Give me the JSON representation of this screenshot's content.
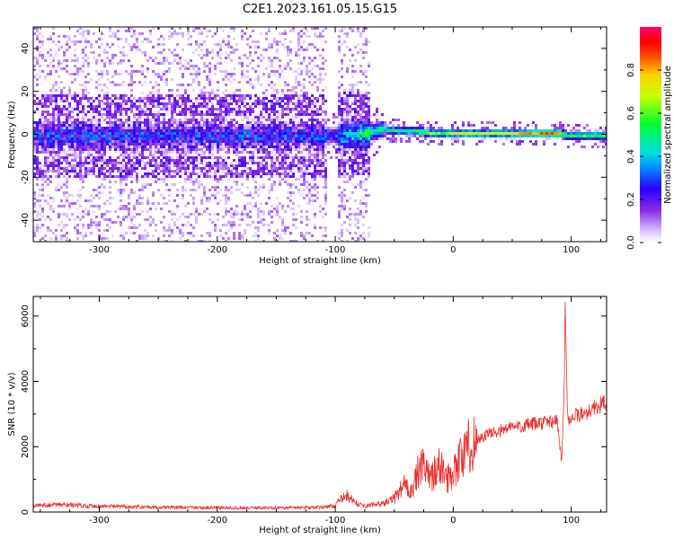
{
  "title": "C2E1.2023.161.05.15.G15",
  "chart_data": [
    {
      "type": "heatmap",
      "xlabel": "Height of straight line (km)",
      "ylabel": "Frequency (Hz)",
      "xlim": [
        -356,
        130
      ],
      "ylim": [
        -50,
        50
      ],
      "xticks": [
        -300,
        -200,
        -100,
        0,
        100
      ],
      "yticks": [
        -40,
        -20,
        0,
        20,
        40
      ],
      "colorbar": {
        "label": "Normalized spectral amplitude",
        "range": [
          0,
          1
        ],
        "ticks": [
          0.0,
          0.2,
          0.4,
          0.6,
          0.8
        ]
      },
      "ridge": {
        "x": [
          -356,
          -300,
          -200,
          -110,
          -95,
          -75,
          -60,
          -45,
          -30,
          -20,
          -10,
          0,
          20,
          40,
          60,
          80,
          90,
          95,
          100,
          110,
          130
        ],
        "center_hz": [
          0,
          0,
          0,
          0,
          0,
          1,
          3,
          2,
          2,
          1,
          1,
          1,
          1,
          1,
          1,
          1,
          1,
          0,
          0,
          0,
          0
        ],
        "amplitude": [
          0.25,
          0.25,
          0.25,
          0.25,
          0.35,
          0.5,
          0.55,
          0.55,
          0.6,
          0.7,
          0.6,
          0.75,
          0.7,
          0.7,
          0.8,
          0.9,
          0.8,
          0.6,
          0.6,
          0.65,
          0.6
        ]
      }
    },
    {
      "type": "line",
      "xlabel": "Height of straight line (km)",
      "ylabel": "SNR (10 * v/v)",
      "xlim": [
        -356,
        130
      ],
      "ylim": [
        0,
        6600
      ],
      "xticks": [
        -300,
        -200,
        -100,
        0,
        100
      ],
      "yticks": [
        0,
        2000,
        4000,
        6000
      ],
      "series": [
        {
          "color": "#e8302e",
          "x": [
            -356,
            -330,
            -300,
            -250,
            -200,
            -150,
            -110,
            -100,
            -95,
            -90,
            -85,
            -80,
            -75,
            -70,
            -60,
            -50,
            -45,
            -40,
            -35,
            -30,
            -25,
            -20,
            -15,
            -10,
            -5,
            0,
            5,
            10,
            15,
            20,
            30,
            40,
            50,
            60,
            70,
            80,
            88,
            92,
            94,
            95,
            96,
            97,
            100,
            110,
            120,
            130
          ],
          "y": [
            200,
            220,
            180,
            150,
            130,
            130,
            150,
            200,
            400,
            500,
            350,
            220,
            180,
            220,
            250,
            400,
            700,
            900,
            600,
            1200,
            1400,
            1000,
            1300,
            1400,
            1000,
            1300,
            1600,
            1800,
            2100,
            2200,
            2400,
            2500,
            2600,
            2650,
            2700,
            2750,
            2800,
            1500,
            3800,
            6500,
            4200,
            2900,
            2900,
            3000,
            3200,
            3350
          ]
        }
      ]
    }
  ]
}
